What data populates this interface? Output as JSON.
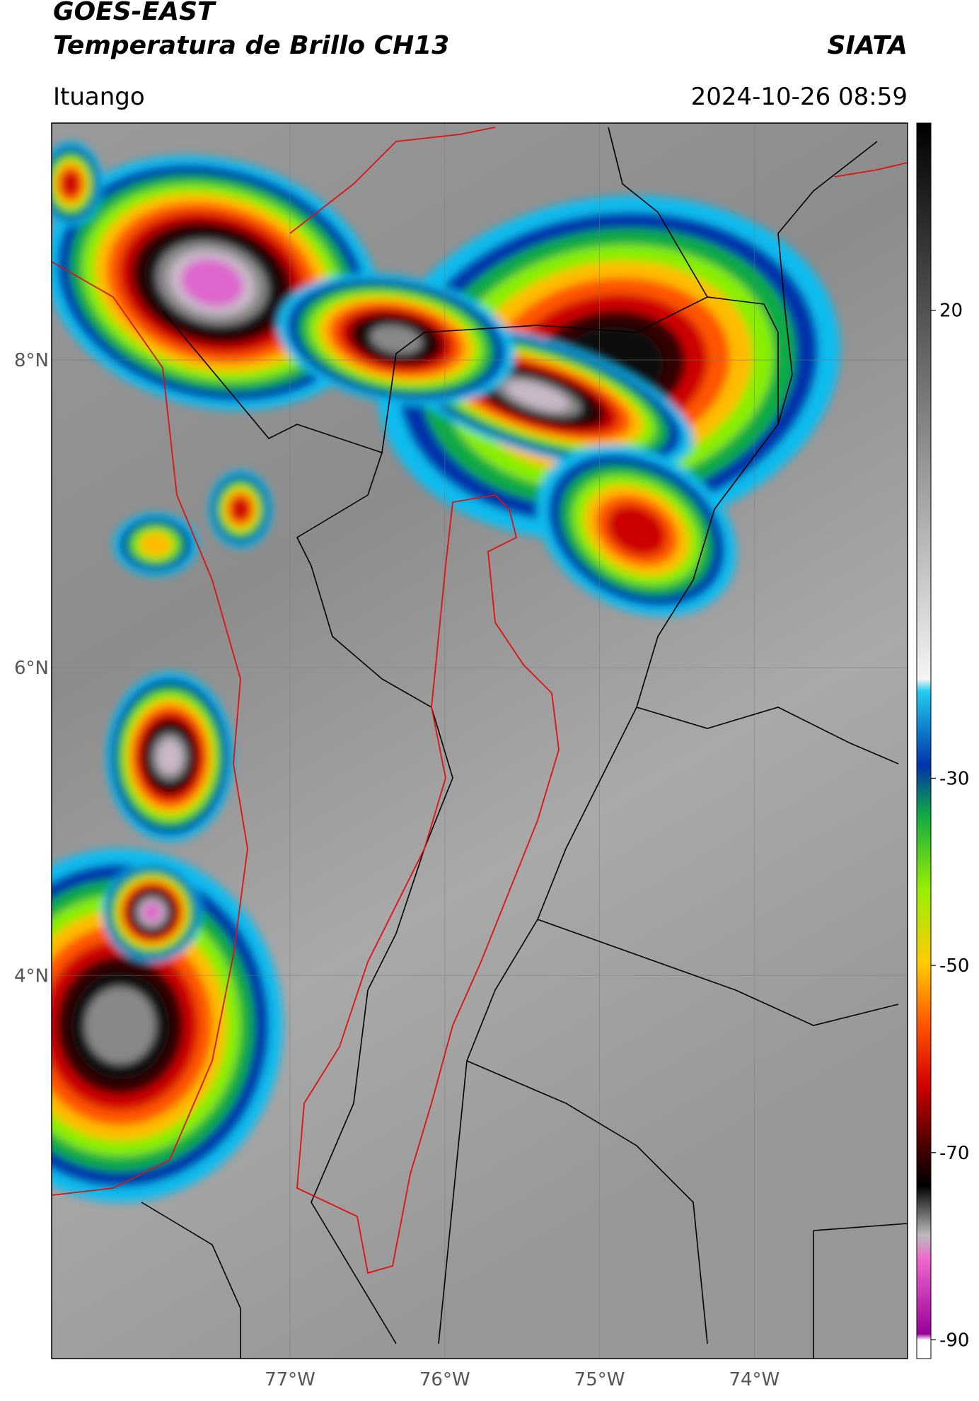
{
  "header": {
    "title_line1": "GOES-EAST",
    "title_line2": "Temperatura de Brillo CH13",
    "organization": "SIATA",
    "location": "Ituango",
    "datetime": "2024-10-26 08:59"
  },
  "map": {
    "lonlim": [
      -78.54,
      -73.01
    ],
    "latlim": [
      9.54,
      1.51
    ],
    "lon_ticks": [
      {
        "value": -77,
        "label": "77°W"
      },
      {
        "value": -76,
        "label": "76°W"
      },
      {
        "value": -75,
        "label": "75°W"
      },
      {
        "value": -74,
        "label": "74°W"
      }
    ],
    "lat_ticks": [
      {
        "value": 8,
        "label": "8°N"
      },
      {
        "value": 6,
        "label": "6°N"
      },
      {
        "value": 4,
        "label": "4°N"
      }
    ]
  },
  "colorbar": {
    "lim": [
      40,
      -92
    ],
    "ticks": [
      20,
      -30,
      -50,
      -70,
      -90
    ]
  }
}
